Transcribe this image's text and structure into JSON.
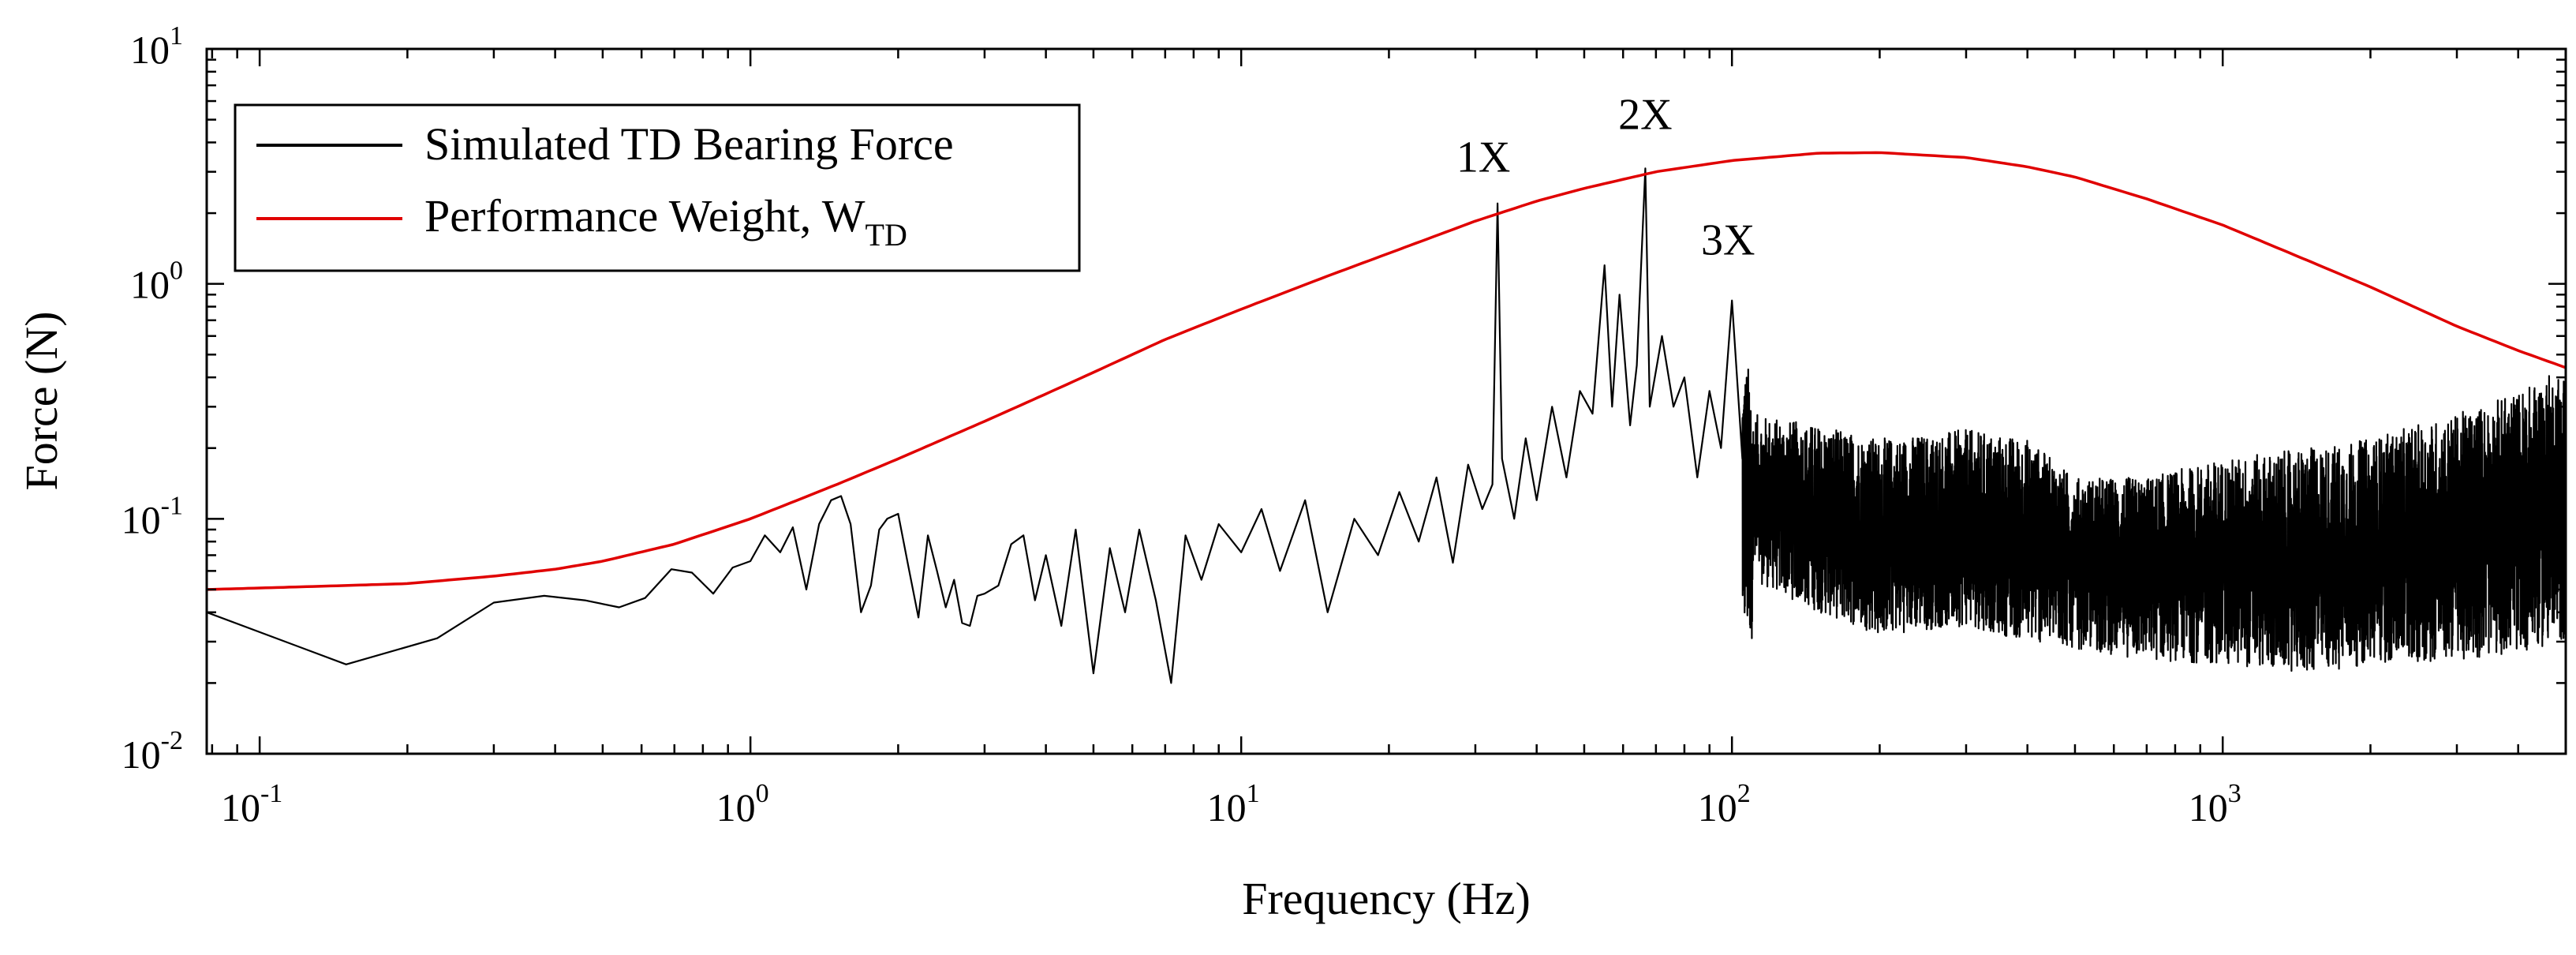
{
  "chart_data": {
    "type": "line",
    "title": "",
    "xlabel": "Frequency (Hz)",
    "ylabel": "Force (N)",
    "xscale": "log",
    "yscale": "log",
    "xlim": [
      0.078,
      5000
    ],
    "ylim": [
      0.01,
      10
    ],
    "x_ticks": [
      {
        "base": "10",
        "exp": "-1"
      },
      {
        "base": "10",
        "exp": "0"
      },
      {
        "base": "10",
        "exp": "1"
      },
      {
        "base": "10",
        "exp": "2"
      },
      {
        "base": "10",
        "exp": "3"
      }
    ],
    "y_ticks": [
      {
        "base": "10",
        "exp": "-2"
      },
      {
        "base": "10",
        "exp": "-1"
      },
      {
        "base": "10",
        "exp": "0"
      },
      {
        "base": "10",
        "exp": "1"
      }
    ],
    "legend": {
      "placement": "top-left",
      "entries": [
        {
          "label": "Simulated TD Bearing Force",
          "color": "#000000"
        },
        {
          "label": "Performance Weight, W",
          "subscript": "TD",
          "color": "#e00000"
        }
      ]
    },
    "annotations": [
      {
        "text": "1X",
        "x": 33.3,
        "y": 2.2
      },
      {
        "text": "2X",
        "x": 66.6,
        "y": 3.1
      },
      {
        "text": "3X",
        "x": 100,
        "y": 0.85
      }
    ],
    "series": [
      {
        "name": "Performance Weight, W_TD",
        "color": "#e00000",
        "x": [
          0.078,
          0.15,
          0.2,
          0.3,
          0.4,
          0.5,
          0.7,
          1.0,
          1.5,
          2,
          3,
          4,
          5,
          7,
          10,
          15,
          20,
          30,
          40,
          50,
          70,
          100,
          150,
          200,
          300,
          400,
          500,
          700,
          1000,
          1500,
          2000,
          3000,
          4000,
          5000
        ],
        "values": [
          0.05,
          0.052,
          0.053,
          0.057,
          0.061,
          0.066,
          0.078,
          0.1,
          0.14,
          0.18,
          0.26,
          0.34,
          0.42,
          0.58,
          0.78,
          1.08,
          1.35,
          1.85,
          2.25,
          2.55,
          3.0,
          3.35,
          3.6,
          3.62,
          3.45,
          3.15,
          2.85,
          2.3,
          1.78,
          1.25,
          0.97,
          0.66,
          0.52,
          0.44
        ]
      },
      {
        "name": "Simulated TD Bearing Force",
        "color": "#000000",
        "x": [
          0.078,
          0.15,
          0.23,
          0.3,
          0.38,
          0.46,
          0.54,
          0.61,
          0.69,
          0.76,
          0.84,
          0.92,
          1.0,
          1.07,
          1.15,
          1.22,
          1.3,
          1.38,
          1.46,
          1.53,
          1.6,
          1.68,
          1.76,
          1.83,
          1.9,
          2.0,
          2.1,
          2.2,
          2.3,
          2.4,
          2.5,
          2.6,
          2.7,
          2.8,
          2.9,
          3.0,
          3.2,
          3.4,
          3.6,
          3.8,
          4.0,
          4.3,
          4.6,
          5.0,
          5.4,
          5.8,
          6.2,
          6.7,
          7.2,
          7.7,
          8.3,
          9.0,
          10,
          11,
          12,
          13.5,
          15,
          17,
          19,
          21,
          23,
          25,
          27,
          29,
          31,
          32.5,
          33.3,
          34,
          36,
          38,
          40,
          43,
          46,
          49,
          52,
          55,
          57,
          59,
          62,
          64,
          66.6,
          68,
          72,
          76,
          80,
          85,
          90,
          95,
          100,
          105
        ],
        "values": [
          0.04,
          0.024,
          0.031,
          0.044,
          0.047,
          0.045,
          0.042,
          0.046,
          0.061,
          0.059,
          0.048,
          0.062,
          0.066,
          0.085,
          0.072,
          0.092,
          0.05,
          0.095,
          0.12,
          0.125,
          0.095,
          0.04,
          0.052,
          0.09,
          0.1,
          0.105,
          0.062,
          0.038,
          0.085,
          0.06,
          0.042,
          0.055,
          0.036,
          0.035,
          0.047,
          0.048,
          0.052,
          0.078,
          0.085,
          0.045,
          0.07,
          0.035,
          0.09,
          0.022,
          0.075,
          0.04,
          0.09,
          0.045,
          0.02,
          0.085,
          0.055,
          0.095,
          0.072,
          0.11,
          0.06,
          0.12,
          0.04,
          0.1,
          0.07,
          0.13,
          0.08,
          0.15,
          0.065,
          0.17,
          0.11,
          0.14,
          2.2,
          0.18,
          0.1,
          0.22,
          0.12,
          0.3,
          0.15,
          0.35,
          0.28,
          1.2,
          0.3,
          0.9,
          0.25,
          0.45,
          3.1,
          0.3,
          0.6,
          0.3,
          0.4,
          0.15,
          0.35,
          0.2,
          0.85,
          0.18
        ],
        "noise_band": {
          "x": [
            110,
            150,
            200,
            300,
            400,
            500,
            700,
            1000,
            1500,
            2000,
            3000,
            4000,
            5000
          ],
          "lower": [
            0.055,
            0.04,
            0.032,
            0.035,
            0.03,
            0.028,
            0.025,
            0.024,
            0.022,
            0.024,
            0.025,
            0.027,
            0.03
          ],
          "upper": [
            0.28,
            0.25,
            0.22,
            0.24,
            0.22,
            0.15,
            0.15,
            0.18,
            0.2,
            0.22,
            0.28,
            0.35,
            0.45
          ]
        }
      }
    ]
  }
}
